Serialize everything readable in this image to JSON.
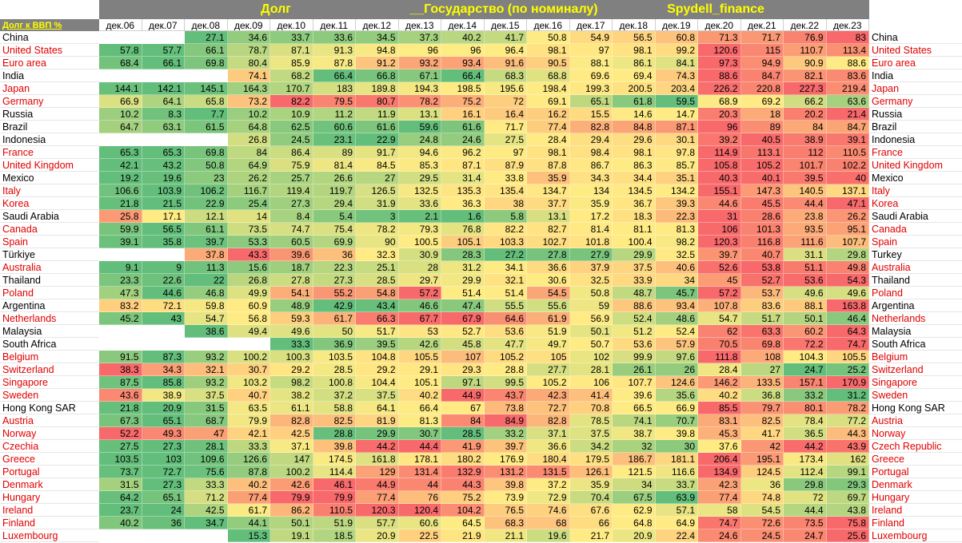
{
  "header": {
    "titles": [
      "Долг",
      "__Государство (по номиналу)",
      "Spydell_finance"
    ],
    "corner_label": "Долг к ВВП %"
  },
  "colors": {
    "header_bg": "#808080",
    "title_color": "#ffff00",
    "low": "#63be7b",
    "mid": "#ffeb84",
    "high": "#f8696b",
    "red_country": "#e00000"
  },
  "chart_data": {
    "type": "table",
    "title": "Долг к ВВП %",
    "columns": [
      "дек.06",
      "дек.07",
      "дек.08",
      "дек.09",
      "дек.10",
      "дек.11",
      "дек.12",
      "дек.13",
      "дек.14",
      "дек.15",
      "дек.16",
      "дек.17",
      "дек.18",
      "дек.19",
      "дек.20",
      "дек.21",
      "дек.22",
      "дек.23"
    ],
    "rows": [
      {
        "name": "China",
        "right": "China",
        "red": false,
        "values": [
          null,
          null,
          27.1,
          34.6,
          33.7,
          33.6,
          34.5,
          37.3,
          40.2,
          41.7,
          50.8,
          54.9,
          56.5,
          60.8,
          71.3,
          71.7,
          76.9,
          83
        ]
      },
      {
        "name": "United States",
        "right": "United States",
        "red": true,
        "values": [
          57.8,
          57.7,
          66.1,
          78.7,
          87.1,
          91.3,
          94.8,
          96,
          96,
          96.4,
          98.1,
          97,
          98.1,
          99.2,
          120.6,
          115,
          110.7,
          113.4
        ]
      },
      {
        "name": "Euro area",
        "right": "Euro area",
        "red": true,
        "values": [
          68.4,
          66.1,
          69.8,
          80.4,
          85.9,
          87.8,
          91.2,
          93.2,
          93.4,
          91.6,
          90.5,
          88.1,
          86.1,
          84.1,
          97.3,
          94.9,
          90.9,
          88.6
        ]
      },
      {
        "name": "India",
        "right": "India",
        "red": false,
        "values": [
          null,
          null,
          null,
          74.1,
          68.2,
          66.4,
          66.8,
          67.1,
          66.4,
          68.3,
          68.8,
          69.6,
          69.4,
          74.3,
          88.6,
          84.7,
          82.1,
          83.6
        ]
      },
      {
        "name": "Japan",
        "right": "Japan",
        "red": true,
        "values": [
          144.1,
          142.1,
          145.1,
          164.3,
          170.7,
          183,
          189.8,
          194.3,
          198.5,
          195.6,
          198.4,
          199.3,
          200.5,
          203.4,
          226.2,
          220.8,
          227.3,
          219.4
        ]
      },
      {
        "name": "Germany",
        "right": "Germany",
        "red": true,
        "values": [
          66.9,
          64.1,
          65.8,
          73.2,
          82.2,
          79.5,
          80.7,
          78.2,
          75.2,
          72,
          69.1,
          65.1,
          61.8,
          59.5,
          68.9,
          69.2,
          66.2,
          63.6
        ]
      },
      {
        "name": "Russia",
        "right": "Russia",
        "red": false,
        "values": [
          10.2,
          8.3,
          7.7,
          10.2,
          10.9,
          11.2,
          11.9,
          13.1,
          16.1,
          16.4,
          16.2,
          15.5,
          14.6,
          14.7,
          20.3,
          18,
          20.2,
          21.4
        ]
      },
      {
        "name": "Brazil",
        "right": "Brazil",
        "red": false,
        "values": [
          64.7,
          63.1,
          61.5,
          64.8,
          62.5,
          60.6,
          61.6,
          59.6,
          61.6,
          71.7,
          77.4,
          82.8,
          84.8,
          87.1,
          96,
          89,
          84,
          84.7
        ]
      },
      {
        "name": "Indonesia",
        "right": "Indonesia",
        "red": false,
        "values": [
          null,
          null,
          null,
          26.8,
          24.5,
          23.1,
          22.9,
          24.8,
          24.6,
          27.5,
          28.4,
          29.4,
          29.6,
          30.1,
          39.2,
          40.5,
          38.9,
          39.1
        ]
      },
      {
        "name": "France",
        "right": "France",
        "red": true,
        "values": [
          65.3,
          65.3,
          69.8,
          84,
          86.4,
          89,
          91.7,
          94.6,
          96.2,
          97,
          98.1,
          98.4,
          98.1,
          97.8,
          114.9,
          113.1,
          112,
          110.5
        ]
      },
      {
        "name": "United Kingdom",
        "right": "United Kingdom",
        "red": true,
        "values": [
          42.1,
          43.2,
          50.8,
          64.9,
          75.9,
          81.4,
          84.5,
          85.3,
          87.1,
          87.9,
          87.8,
          86.7,
          86.3,
          85.7,
          105.8,
          105.2,
          101.7,
          102.2
        ]
      },
      {
        "name": "Mexico",
        "right": "Mexico",
        "red": false,
        "values": [
          19.2,
          19.6,
          23,
          26.2,
          25.7,
          26.6,
          27,
          29.5,
          31.4,
          33.8,
          35.9,
          34.3,
          34.4,
          35.1,
          40.3,
          40.1,
          39.5,
          40
        ]
      },
      {
        "name": "Italy",
        "right": "Italy",
        "red": true,
        "values": [
          106.6,
          103.9,
          106.2,
          116.7,
          119.4,
          119.7,
          126.5,
          132.5,
          135.3,
          135.4,
          134.7,
          134,
          134.5,
          134.2,
          155.1,
          147.3,
          140.5,
          137.1
        ]
      },
      {
        "name": "Korea",
        "right": "Korea",
        "red": true,
        "values": [
          21.8,
          21.5,
          22.9,
          25.4,
          27.3,
          29.4,
          31.9,
          33.6,
          36.3,
          38,
          37.7,
          35.9,
          36.7,
          39.3,
          44.6,
          45.5,
          44.4,
          47.1
        ]
      },
      {
        "name": "Saudi Arabia",
        "right": "Saudi Arabia",
        "red": false,
        "values": [
          25.8,
          17.1,
          12.1,
          14,
          8.4,
          5.4,
          3,
          2.1,
          1.6,
          5.8,
          13.1,
          17.2,
          18.3,
          22.3,
          31,
          28.6,
          23.8,
          26.2
        ]
      },
      {
        "name": "Canada",
        "right": "Canada",
        "red": true,
        "values": [
          59.9,
          56.5,
          61.1,
          73.5,
          74.7,
          75.4,
          78.2,
          79.3,
          76.8,
          82.2,
          82.7,
          81.4,
          81.1,
          81.3,
          106,
          101.3,
          93.5,
          95.1
        ]
      },
      {
        "name": "Spain",
        "right": "Spain",
        "red": true,
        "values": [
          39.1,
          35.8,
          39.7,
          53.3,
          60.5,
          69.9,
          90,
          100.5,
          105.1,
          103.3,
          102.7,
          101.8,
          100.4,
          98.2,
          120.3,
          116.8,
          111.6,
          107.7
        ]
      },
      {
        "name": "Türkiye",
        "right": "Turkey",
        "red": false,
        "values": [
          null,
          null,
          37.8,
          43.3,
          39.6,
          36,
          32.3,
          30.9,
          28.3,
          27.2,
          27.8,
          27.9,
          29.9,
          32.5,
          39.7,
          40.7,
          31.1,
          29.8
        ]
      },
      {
        "name": "Australia",
        "right": "Australia",
        "red": true,
        "values": [
          9.1,
          9,
          11.3,
          15.6,
          18.7,
          22.3,
          25.1,
          28,
          31.2,
          34.1,
          36.6,
          37.9,
          37.5,
          40.6,
          52.6,
          53.8,
          51.1,
          49.8
        ]
      },
      {
        "name": "Thailand",
        "right": "Thailand",
        "red": false,
        "values": [
          23.3,
          22.6,
          22,
          26.8,
          27.8,
          27.3,
          28.5,
          29.7,
          29.9,
          32.1,
          30.6,
          32.5,
          33.9,
          34,
          45,
          52.7,
          53.6,
          54.3
        ]
      },
      {
        "name": "Poland",
        "right": "Poland",
        "red": true,
        "values": [
          47.3,
          44.6,
          46.8,
          49.9,
          54.1,
          55.2,
          54.8,
          57.2,
          51.4,
          51.4,
          54.5,
          50.8,
          48.7,
          45.7,
          57.2,
          53.7,
          49.6,
          49.6
        ]
      },
      {
        "name": "Argentina",
        "right": "Argentina",
        "red": false,
        "values": [
          83.2,
          72.1,
          59.8,
          60.9,
          48.9,
          42.9,
          43.4,
          46.6,
          47.4,
          55.5,
          55.6,
          59,
          88.6,
          93.4,
          107.8,
          83.6,
          88.1,
          163.8
        ]
      },
      {
        "name": "Netherlands",
        "right": "Netherlands",
        "red": true,
        "values": [
          45.2,
          43,
          54.7,
          56.8,
          59.3,
          61.7,
          66.3,
          67.7,
          67.9,
          64.6,
          61.9,
          56.9,
          52.4,
          48.6,
          54.7,
          51.7,
          50.1,
          46.4
        ]
      },
      {
        "name": "Malaysia",
        "right": "Malaysia",
        "red": false,
        "values": [
          null,
          null,
          38.6,
          49.4,
          49.6,
          50,
          51.7,
          53,
          52.7,
          53.6,
          51.9,
          50.1,
          51.2,
          52.4,
          62,
          63.3,
          60.2,
          64.3
        ]
      },
      {
        "name": "South Africa",
        "right": "South Africa",
        "red": false,
        "values": [
          null,
          null,
          null,
          null,
          33.3,
          36.9,
          39.5,
          42.6,
          45.8,
          47.7,
          49.7,
          50.7,
          53.6,
          57.9,
          70.5,
          69.8,
          72.2,
          74.7
        ]
      },
      {
        "name": "Belgium",
        "right": "Belgium",
        "red": true,
        "values": [
          91.5,
          87.3,
          93.2,
          100.2,
          100.3,
          103.5,
          104.8,
          105.5,
          107,
          105.2,
          105,
          102,
          99.9,
          97.6,
          111.8,
          108,
          104.3,
          105.5
        ]
      },
      {
        "name": "Switzerland",
        "right": "Switzerland",
        "red": true,
        "values": [
          38.3,
          34.3,
          32.1,
          30.7,
          29.2,
          28.5,
          29.2,
          29.1,
          29.3,
          28.8,
          27.7,
          28.1,
          26.1,
          26,
          28.4,
          27,
          24.7,
          25.2
        ]
      },
      {
        "name": "Singapore",
        "right": "Singapore",
        "red": true,
        "values": [
          87.5,
          85.8,
          93.2,
          103.2,
          98.2,
          100.8,
          104.4,
          105.1,
          97.1,
          99.5,
          105.2,
          106,
          107.7,
          124.6,
          146.2,
          133.5,
          157.1,
          170.9
        ]
      },
      {
        "name": "Sweden",
        "right": "Sweden",
        "red": true,
        "values": [
          43.6,
          38.9,
          37.5,
          40.7,
          38.2,
          37.2,
          37.5,
          40.2,
          44.9,
          43.7,
          42.3,
          41.4,
          39.6,
          35.6,
          40.2,
          36.8,
          33.2,
          31.2
        ]
      },
      {
        "name": "Hong Kong SAR",
        "right": "Hong Kong SAR",
        "red": false,
        "values": [
          21.8,
          20.9,
          31.5,
          63.5,
          61.1,
          58.8,
          64.1,
          66.4,
          67,
          73.8,
          72.7,
          70.8,
          66.5,
          66.9,
          85.5,
          79.7,
          80.1,
          78.2
        ]
      },
      {
        "name": "Austria",
        "right": "Austria",
        "red": true,
        "values": [
          67.3,
          65.1,
          68.7,
          79.9,
          82.8,
          82.5,
          81.9,
          81.3,
          84,
          84.9,
          82.8,
          78.5,
          74.1,
          70.7,
          83.1,
          82.5,
          78.4,
          77.2
        ]
      },
      {
        "name": "Norway",
        "right": "Norway",
        "red": true,
        "values": [
          52.2,
          49.3,
          47,
          42.1,
          42.5,
          28.8,
          29.9,
          30.7,
          28.5,
          33.2,
          37.1,
          37.5,
          38.7,
          39.8,
          45.3,
          41.7,
          36.5,
          44.3
        ]
      },
      {
        "name": "Czechia",
        "right": "Czech Republic",
        "red": true,
        "values": [
          27.5,
          27.3,
          28.1,
          33.3,
          37.1,
          39.8,
          44.2,
          44.4,
          41.9,
          39.7,
          36.6,
          34.2,
          32,
          30,
          37.6,
          42,
          44.2,
          43.9
        ]
      },
      {
        "name": "Greece",
        "right": "Greece",
        "red": true,
        "values": [
          103.5,
          103,
          109.6,
          126.6,
          147,
          174.5,
          161.8,
          178.1,
          180.2,
          176.9,
          180.4,
          179.5,
          186.7,
          181.1,
          206.4,
          195.1,
          173.4,
          162
        ]
      },
      {
        "name": "Portugal",
        "right": "Portugal",
        "red": true,
        "values": [
          73.7,
          72.7,
          75.6,
          87.8,
          100.2,
          114.4,
          129,
          131.4,
          132.9,
          131.2,
          131.5,
          126.1,
          121.5,
          116.6,
          134.9,
          124.5,
          112.4,
          99.1
        ]
      },
      {
        "name": "Denmark",
        "right": "Denmark",
        "red": true,
        "values": [
          31.5,
          27.3,
          33.3,
          40.2,
          42.6,
          46.1,
          44.9,
          44,
          44.3,
          39.8,
          37.2,
          35.9,
          34,
          33.7,
          42.3,
          36,
          29.8,
          29.3
        ]
      },
      {
        "name": "Hungary",
        "right": "Hungary",
        "red": true,
        "values": [
          64.2,
          65.1,
          71.2,
          77.4,
          79.9,
          79.9,
          77.4,
          76,
          75.2,
          73.9,
          72.9,
          70.4,
          67.5,
          63.9,
          77.4,
          74.8,
          72,
          69.7
        ]
      },
      {
        "name": "Ireland",
        "right": "Ireland",
        "red": true,
        "values": [
          23.7,
          24,
          42.5,
          61.7,
          86.2,
          110.5,
          120.3,
          120.4,
          104.2,
          76.5,
          74.6,
          67.6,
          62.9,
          57.1,
          58,
          54.5,
          44.4,
          43.8
        ]
      },
      {
        "name": "Finland",
        "right": "Finland",
        "red": true,
        "values": [
          40.2,
          36,
          34.7,
          44.1,
          50.1,
          51.9,
          57.7,
          60.6,
          64.5,
          68.3,
          68,
          66,
          64.8,
          64.9,
          74.7,
          72.6,
          73.5,
          75.8
        ]
      },
      {
        "name": "Luxembourg",
        "right": "Luxembourg",
        "red": true,
        "values": [
          null,
          null,
          null,
          15.3,
          19.1,
          18.5,
          20.9,
          22.5,
          21.9,
          21.1,
          19.6,
          21.7,
          20.9,
          22.4,
          24.6,
          24.5,
          24.7,
          25.6
        ]
      }
    ]
  }
}
